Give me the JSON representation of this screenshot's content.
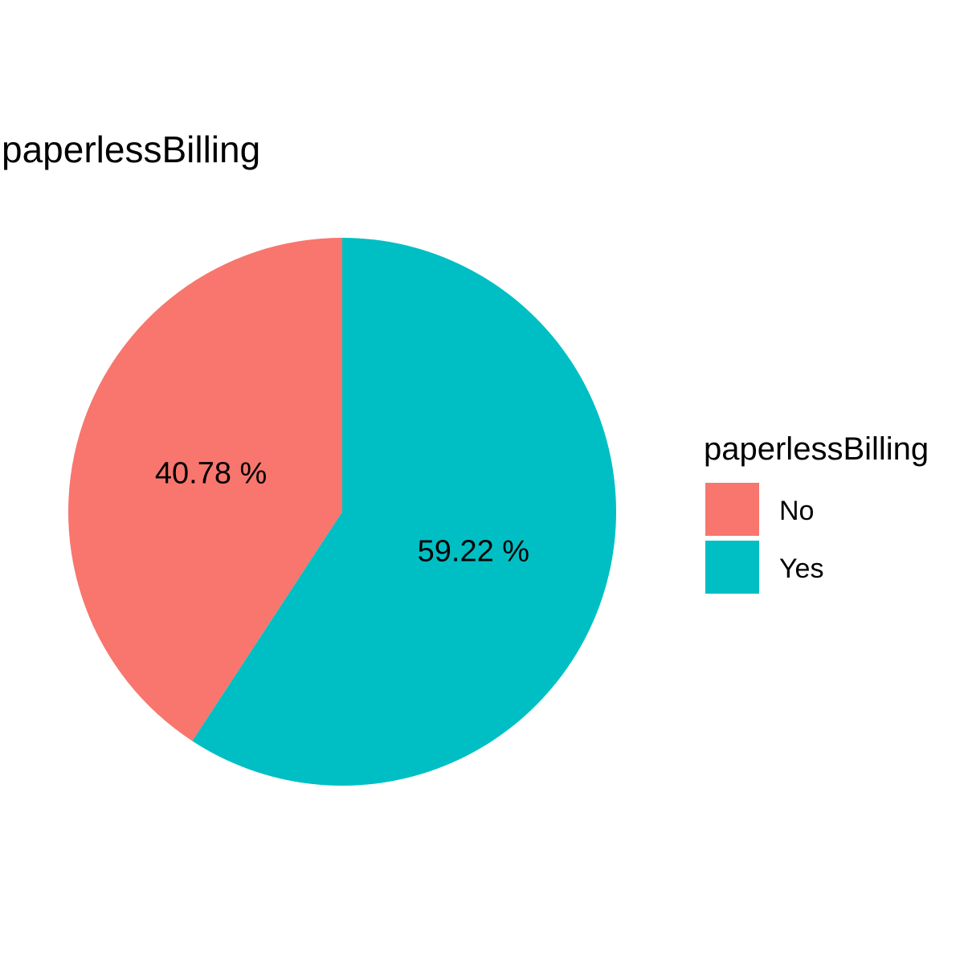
{
  "chart_data": {
    "type": "pie",
    "title": "paperlessBilling",
    "categories": [
      "No",
      "Yes"
    ],
    "values": [
      40.78,
      59.22
    ],
    "labels": [
      "40.78 %",
      "59.22 %"
    ],
    "colors": [
      "#F8766D",
      "#00BFC4"
    ],
    "legend": {
      "title": "paperlessBilling",
      "placement": "right"
    }
  }
}
